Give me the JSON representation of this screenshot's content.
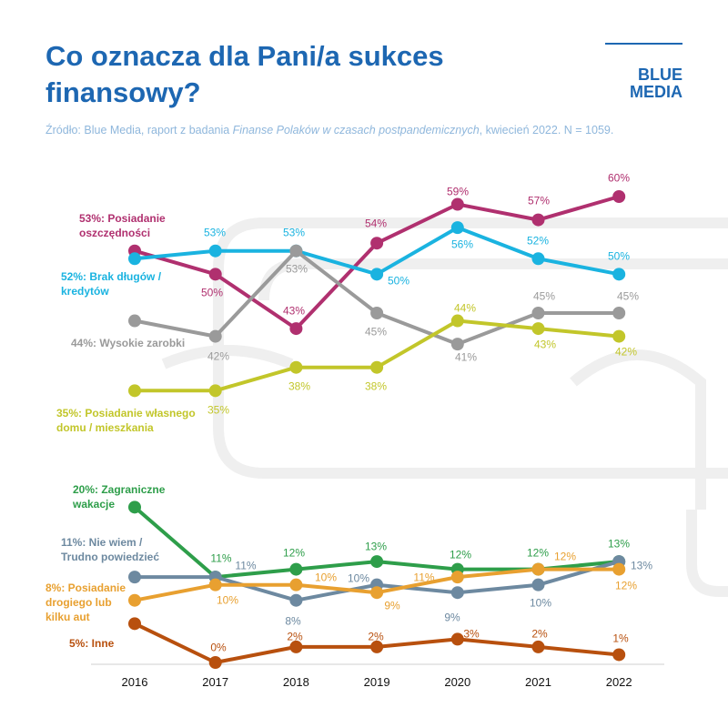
{
  "logo": "BLUE\nMEDIA",
  "source": {
    "prefix": "Źródło: Blue Media, raport z badania ",
    "italic": "Finanse Polaków w czasach postpandemicznych",
    "suffix": ", kwiecień 2022. N = 1059."
  },
  "chart_data": {
    "type": "line",
    "title": "Co oznacza dla Pani/a sukces\nfinansowy?",
    "categories": [
      "2016",
      "2017",
      "2018",
      "2019",
      "2020",
      "2021",
      "2022"
    ],
    "ylim": [
      0,
      60
    ],
    "grid": false,
    "series": [
      {
        "color": "#b0306f",
        "values": [
          53,
          50,
          43,
          54,
          59,
          57,
          60
        ],
        "value_labels": [
          "53%: Posiadanie\noszczędności",
          "50%",
          "43%",
          "54%",
          "59%",
          "57%",
          "60%"
        ]
      },
      {
        "color": "#1ab3e0",
        "values": [
          52,
          53,
          53,
          50,
          56,
          52,
          50
        ],
        "value_labels": [
          "52%: Brak długów /\nkredytów",
          "53%",
          "53%",
          "50%",
          "56%",
          "52%",
          "50%"
        ]
      },
      {
        "color": "#9a9a9a",
        "values": [
          44,
          42,
          53,
          45,
          41,
          45,
          45
        ],
        "value_labels": [
          "44%: Wysokie zarobki",
          "42%",
          "53%",
          "45%",
          "41%",
          "45%",
          "45%"
        ]
      },
      {
        "color": "#c2c62a",
        "values": [
          35,
          35,
          38,
          38,
          44,
          43,
          42
        ],
        "value_labels": [
          "35%: Posiadanie własnego\ndomu / mieszkania",
          "35%",
          "38%",
          "38%",
          "44%",
          "43%",
          "42%"
        ]
      },
      {
        "color": "#2e9e4a",
        "values": [
          20,
          11,
          12,
          13,
          12,
          12,
          13
        ],
        "value_labels": [
          "20%: Zagraniczne\nwakacje",
          "11%",
          "12%",
          "13%",
          "12%",
          "12%",
          "13%"
        ]
      },
      {
        "color": "#6d89a0",
        "values": [
          11,
          11,
          8,
          10,
          9,
          10,
          13
        ],
        "value_labels": [
          "11%: Nie wiem /\nTrudno powiedzieć",
          "11%",
          "8%",
          "10%",
          "9%",
          "10%",
          "13%"
        ]
      },
      {
        "color": "#e8a030",
        "values": [
          8,
          10,
          10,
          9,
          11,
          12,
          12
        ],
        "value_labels": [
          "8%: Posiadanie\ndrogiego lub\nkilku aut",
          "10%",
          "10%",
          "9%",
          "11%",
          "12%",
          "12%"
        ]
      },
      {
        "color": "#b8500e",
        "values": [
          5,
          0,
          2,
          2,
          3,
          2,
          1
        ],
        "value_labels": [
          "5%: Inne",
          "0%",
          "2%",
          "2%",
          "3%",
          "2%",
          "1%"
        ]
      }
    ]
  }
}
